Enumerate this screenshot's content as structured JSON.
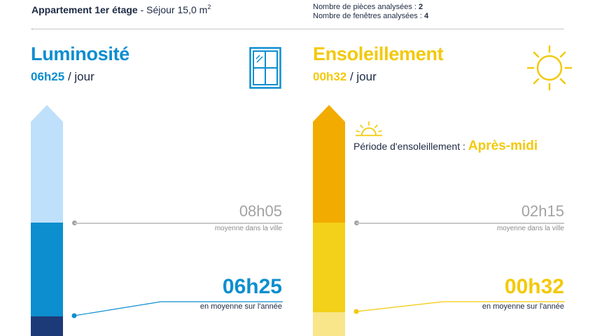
{
  "header": {
    "apartment": "Appartement 1er étage",
    "room": "- Séjour 15,0 m",
    "room_sup": "2",
    "rooms_label": "Nombre de pièces analysées :",
    "rooms_count": "2",
    "windows_label": "Nombre de fenêtres analysées :",
    "windows_count": "4"
  },
  "luminosite": {
    "title": "Luminosité",
    "value": "06h25",
    "per_day": "/ jour",
    "city_avg": "08h05",
    "city_avg_label": "moyenne dans la ville",
    "year_avg": "06h25",
    "year_avg_label": "en moyenne sur l'année",
    "icon": "window-icon",
    "colors": {
      "light": "#bfe0fa",
      "mid": "#0d8ecf",
      "dark": "#1d3a78",
      "accent": "#0d8ecf"
    }
  },
  "ensoleillement": {
    "title": "Ensoleillement",
    "value": "00h32",
    "per_day": "/ jour",
    "period_label": "Période d'ensoleillement :",
    "period_value": "Après-midi",
    "city_avg": "02h15",
    "city_avg_label": "moyenne dans la ville",
    "year_avg": "00h32",
    "year_avg_label": "en moyenne sur l'année",
    "icon": "sun-icon",
    "period_icon": "sunset-icon",
    "colors": {
      "top": "#f2ab00",
      "mid": "#f3d01a",
      "light": "#f9e58a",
      "accent": "#f3c90a"
    }
  }
}
